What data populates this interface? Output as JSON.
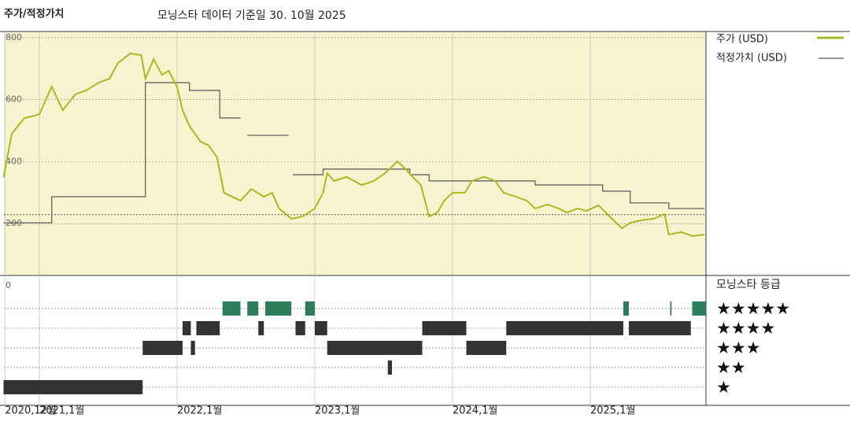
{
  "chart_data": {
    "type": "line",
    "title": "주가/적정가치",
    "subtitle": "모닝스타 데이터 기준일 30. 10월 2025",
    "xlim": [
      2020.743,
      2025.84
    ],
    "xticks": [
      {
        "value": 2020.75,
        "label": "2020,12월"
      },
      {
        "value": 2021,
        "label": "2021,1월"
      },
      {
        "value": 2022,
        "label": "2022,1월"
      },
      {
        "value": 2023,
        "label": "2023,1월"
      },
      {
        "value": 2024,
        "label": "2024,1월"
      },
      {
        "value": 2025,
        "label": "2025,1월"
      }
    ],
    "ylim": [
      0,
      820
    ],
    "yticks": [
      0,
      200,
      400,
      600,
      800
    ],
    "reference_line": 229,
    "series": [
      {
        "name": "주가 (USD)",
        "color": "#a9b824",
        "step": false,
        "x": [
          2020.74,
          2020.8,
          2020.89,
          2021.0,
          2021.09,
          2021.17,
          2021.26,
          2021.34,
          2021.43,
          2021.51,
          2021.57,
          2021.66,
          2021.74,
          2021.77,
          2021.83,
          2021.89,
          2021.94,
          2022.0,
          2022.04,
          2022.09,
          2022.17,
          2022.23,
          2022.29,
          2022.34,
          2022.4,
          2022.46,
          2022.54,
          2022.63,
          2022.69,
          2022.74,
          2022.83,
          2022.91,
          2023.0,
          2023.06,
          2023.09,
          2023.14,
          2023.23,
          2023.34,
          2023.43,
          2023.51,
          2023.6,
          2023.66,
          2023.71,
          2023.77,
          2023.83,
          2023.89,
          2023.94,
          2024.0,
          2024.09,
          2024.14,
          2024.23,
          2024.31,
          2024.37,
          2024.46,
          2024.54,
          2024.6,
          2024.69,
          2024.77,
          2024.83,
          2024.91,
          2024.97,
          2025.06,
          2025.14,
          2025.23,
          2025.29,
          2025.37,
          2025.46,
          2025.54,
          2025.57,
          2025.66,
          2025.74,
          2025.83
        ],
        "values": [
          350,
          490,
          540,
          553,
          642,
          566,
          617,
          630,
          655,
          668,
          718,
          749,
          744,
          668,
          731,
          680,
          693,
          642,
          566,
          515,
          465,
          452,
          414,
          300,
          287,
          274,
          312,
          287,
          300,
          249,
          216,
          223,
          249,
          300,
          363,
          338,
          351,
          325,
          338,
          363,
          401,
          376,
          351,
          325,
          223,
          236,
          274,
          300,
          300,
          338,
          351,
          338,
          300,
          287,
          274,
          249,
          262,
          249,
          236,
          249,
          241,
          259,
          223,
          185,
          203,
          211,
          216,
          231,
          165,
          173,
          160,
          165
        ]
      },
      {
        "name": "적정가치 (USD)",
        "color": "#555555",
        "step": true,
        "x": [
          2020.74,
          2021.09,
          2021.77,
          2022.09,
          2022.31,
          2022.46,
          2022.49,
          2022.51,
          2022.81,
          2022.82,
          2022.84,
          2023.06,
          2023.69,
          2023.83,
          2024.6,
          2025.09,
          2025.29,
          2025.57,
          2025.83
        ],
        "values": [
          203,
          287,
          655,
          630,
          541,
          541,
          null,
          485,
          485,
          null,
          358,
          376,
          358,
          338,
          325,
          305,
          267,
          249,
          249
        ]
      }
    ],
    "star_ratings": {
      "title": "모닝스타 등급",
      "levels": [
        "★★★★★",
        "★★★★",
        "★★★",
        "★★",
        "★"
      ],
      "colors": {
        "5": "#2e7d5b",
        "other": "#333333"
      },
      "periods": [
        {
          "start": 2020.74,
          "end": 2021.75,
          "stars": 1
        },
        {
          "start": 2021.75,
          "end": 2022.04,
          "stars": 3
        },
        {
          "start": 2022.04,
          "end": 2022.1,
          "stars": 4
        },
        {
          "start": 2022.1,
          "end": 2022.13,
          "stars": 3
        },
        {
          "start": 2022.14,
          "end": 2022.31,
          "stars": 4
        },
        {
          "start": 2022.33,
          "end": 2022.46,
          "stars": 5
        },
        {
          "start": 2022.51,
          "end": 2022.59,
          "stars": 5
        },
        {
          "start": 2022.59,
          "end": 2022.63,
          "stars": 4
        },
        {
          "start": 2022.64,
          "end": 2022.83,
          "stars": 5
        },
        {
          "start": 2022.86,
          "end": 2022.93,
          "stars": 4
        },
        {
          "start": 2022.93,
          "end": 2023.0,
          "stars": 5
        },
        {
          "start": 2023.0,
          "end": 2023.09,
          "stars": 4
        },
        {
          "start": 2023.09,
          "end": 2023.78,
          "stars": 3
        },
        {
          "start": 2023.53,
          "end": 2023.56,
          "stars": 2
        },
        {
          "start": 2023.78,
          "end": 2024.1,
          "stars": 4
        },
        {
          "start": 2024.1,
          "end": 2024.39,
          "stars": 3
        },
        {
          "start": 2024.39,
          "end": 2025.24,
          "stars": 4
        },
        {
          "start": 2025.24,
          "end": 2025.28,
          "stars": 5
        },
        {
          "start": 2025.28,
          "end": 2025.73,
          "stars": 4
        },
        {
          "start": 2025.58,
          "end": 2025.59,
          "stars": 5
        },
        {
          "start": 2025.74,
          "end": 2025.84,
          "stars": 5
        }
      ]
    }
  }
}
